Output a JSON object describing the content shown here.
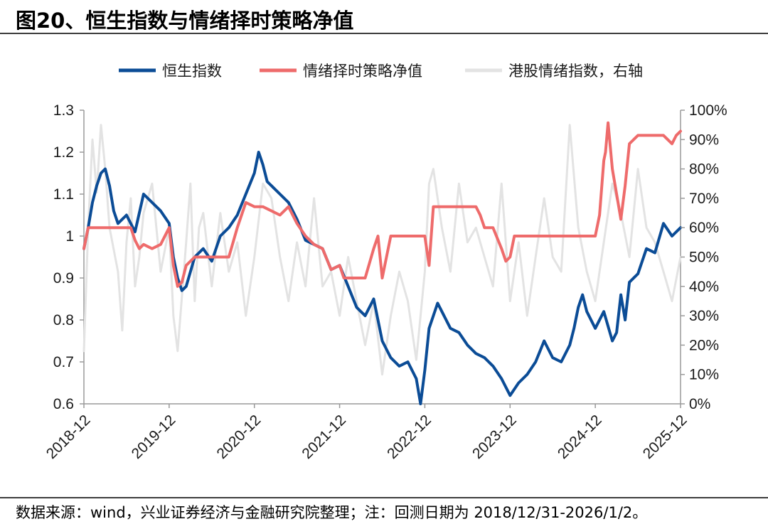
{
  "figure": {
    "title": "图20、恒生指数与情绪择时策略净值",
    "source_note": "数据来源：wind，兴业证券经济与金融研究院整理；注：回测日期为 2018/12/31-2026/1/2。"
  },
  "colors": {
    "hsi": "#0b4c96",
    "strategy": "#ee6b6b",
    "sentiment": "#e3e3e3",
    "axis": "#9a9a9a"
  },
  "chart_data": {
    "type": "line",
    "title": "",
    "legend_position": "top-center",
    "x_tick_labels": [
      "2018-12",
      "2019-12",
      "2020-12",
      "2021-12",
      "2022-12",
      "2023-12",
      "2024-12",
      "2025-12"
    ],
    "x_range": [
      0,
      7
    ],
    "y_left": {
      "range": [
        0.6,
        1.3
      ],
      "ticks": [
        "0.6",
        "0.7",
        "0.8",
        "0.9",
        "1",
        "1.1",
        "1.2",
        "1.3"
      ]
    },
    "y_right": {
      "range": [
        0,
        100
      ],
      "ticks": [
        "0%",
        "10%",
        "20%",
        "30%",
        "40%",
        "50%",
        "60%",
        "70%",
        "80%",
        "90%",
        "100%"
      ]
    },
    "series": [
      {
        "name": "港股情绪指数，右轴",
        "axis": "right",
        "x": [
          0,
          0.05,
          0.1,
          0.15,
          0.2,
          0.25,
          0.3,
          0.4,
          0.45,
          0.5,
          0.55,
          0.6,
          0.65,
          0.7,
          0.8,
          0.9,
          1.0,
          1.05,
          1.1,
          1.2,
          1.25,
          1.3,
          1.35,
          1.4,
          1.5,
          1.6,
          1.7,
          1.8,
          1.9,
          2.0,
          2.1,
          2.2,
          2.3,
          2.4,
          2.5,
          2.6,
          2.7,
          2.8,
          2.9,
          3.0,
          3.1,
          3.2,
          3.3,
          3.4,
          3.5,
          3.6,
          3.7,
          3.8,
          3.9,
          4.0,
          4.05,
          4.1,
          4.2,
          4.3,
          4.4,
          4.5,
          4.6,
          4.7,
          4.8,
          4.9,
          5.0,
          5.1,
          5.2,
          5.3,
          5.4,
          5.5,
          5.6,
          5.7,
          5.8,
          5.9,
          6.0,
          6.1,
          6.2,
          6.3,
          6.4,
          6.5,
          6.6,
          6.7,
          6.8,
          6.9,
          7.0
        ],
        "values": [
          18,
          60,
          90,
          72,
          95,
          80,
          60,
          45,
          25,
          55,
          70,
          40,
          50,
          65,
          75,
          45,
          60,
          30,
          18,
          55,
          75,
          35,
          60,
          65,
          40,
          65,
          45,
          55,
          30,
          50,
          75,
          70,
          50,
          35,
          55,
          40,
          70,
          40,
          45,
          30,
          50,
          35,
          20,
          35,
          10,
          30,
          45,
          35,
          15,
          45,
          75,
          80,
          60,
          45,
          75,
          55,
          60,
          50,
          40,
          75,
          35,
          55,
          30,
          50,
          70,
          50,
          45,
          95,
          60,
          45,
          35,
          55,
          75,
          65,
          50,
          80,
          60,
          55,
          45,
          35,
          50
        ]
      },
      {
        "name": "恒生指数",
        "axis": "left",
        "x": [
          0,
          0.05,
          0.1,
          0.15,
          0.2,
          0.25,
          0.3,
          0.35,
          0.4,
          0.5,
          0.6,
          0.7,
          0.8,
          0.9,
          1.0,
          1.05,
          1.1,
          1.15,
          1.2,
          1.3,
          1.4,
          1.5,
          1.6,
          1.7,
          1.8,
          1.9,
          2.0,
          2.05,
          2.1,
          2.15,
          2.2,
          2.3,
          2.4,
          2.5,
          2.6,
          2.7,
          2.8,
          2.9,
          3.0,
          3.1,
          3.2,
          3.3,
          3.4,
          3.5,
          3.6,
          3.7,
          3.8,
          3.9,
          3.95,
          4.0,
          4.05,
          4.1,
          4.15,
          4.2,
          4.3,
          4.4,
          4.5,
          4.6,
          4.7,
          4.8,
          4.9,
          5.0,
          5.1,
          5.2,
          5.3,
          5.4,
          5.5,
          5.6,
          5.7,
          5.75,
          5.8,
          5.85,
          5.9,
          6.0,
          6.1,
          6.2,
          6.25,
          6.3,
          6.35,
          6.4,
          6.5,
          6.6,
          6.7,
          6.8,
          6.9,
          7.0
        ],
        "values": [
          0.97,
          1.02,
          1.08,
          1.12,
          1.15,
          1.16,
          1.12,
          1.06,
          1.03,
          1.05,
          1.01,
          1.1,
          1.08,
          1.06,
          1.03,
          0.95,
          0.9,
          0.87,
          0.88,
          0.95,
          0.97,
          0.94,
          1.0,
          1.02,
          1.05,
          1.1,
          1.15,
          1.2,
          1.17,
          1.13,
          1.12,
          1.1,
          1.08,
          1.04,
          0.99,
          0.98,
          0.97,
          0.92,
          0.93,
          0.88,
          0.83,
          0.81,
          0.85,
          0.75,
          0.71,
          0.69,
          0.7,
          0.66,
          0.6,
          0.68,
          0.78,
          0.81,
          0.84,
          0.82,
          0.78,
          0.77,
          0.74,
          0.72,
          0.71,
          0.69,
          0.66,
          0.62,
          0.65,
          0.67,
          0.7,
          0.75,
          0.71,
          0.7,
          0.74,
          0.78,
          0.83,
          0.86,
          0.82,
          0.78,
          0.82,
          0.75,
          0.77,
          0.86,
          0.8,
          0.89,
          0.91,
          0.97,
          0.96,
          1.03,
          1.0,
          1.02
        ]
      },
      {
        "name": "情绪择时策略净值",
        "axis": "left",
        "x": [
          0,
          0.05,
          0.1,
          0.55,
          0.6,
          0.65,
          0.7,
          0.8,
          0.9,
          1.0,
          1.05,
          1.1,
          1.15,
          1.2,
          1.3,
          1.5,
          1.7,
          1.8,
          1.9,
          2.0,
          2.1,
          2.3,
          2.4,
          2.5,
          2.6,
          2.7,
          2.8,
          2.9,
          3.0,
          3.05,
          3.1,
          3.2,
          3.3,
          3.4,
          3.45,
          3.5,
          3.6,
          4.0,
          4.05,
          4.1,
          4.2,
          4.5,
          4.6,
          4.65,
          4.7,
          4.8,
          4.9,
          4.95,
          5.0,
          5.05,
          5.1,
          5.3,
          6.0,
          6.05,
          6.1,
          6.12,
          6.15,
          6.2,
          6.3,
          6.35,
          6.4,
          6.5,
          6.6,
          6.7,
          6.8,
          6.9,
          6.95,
          7.0
        ],
        "values": [
          0.97,
          1.02,
          1.02,
          1.02,
          0.99,
          0.97,
          0.98,
          0.97,
          0.98,
          1.02,
          0.93,
          0.88,
          0.89,
          0.93,
          0.95,
          0.95,
          0.95,
          1.02,
          1.08,
          1.07,
          1.07,
          1.05,
          1.07,
          1.03,
          1.0,
          0.98,
          0.97,
          0.92,
          0.93,
          0.9,
          0.9,
          0.9,
          0.9,
          0.97,
          1.0,
          0.9,
          1.0,
          1.0,
          0.93,
          1.07,
          1.07,
          1.07,
          1.07,
          1.05,
          1.02,
          1.02,
          0.97,
          0.94,
          0.95,
          1.0,
          1.0,
          1.0,
          1.0,
          1.05,
          1.18,
          1.2,
          1.27,
          1.16,
          1.04,
          1.12,
          1.22,
          1.24,
          1.24,
          1.24,
          1.24,
          1.22,
          1.24,
          1.25
        ]
      }
    ]
  }
}
